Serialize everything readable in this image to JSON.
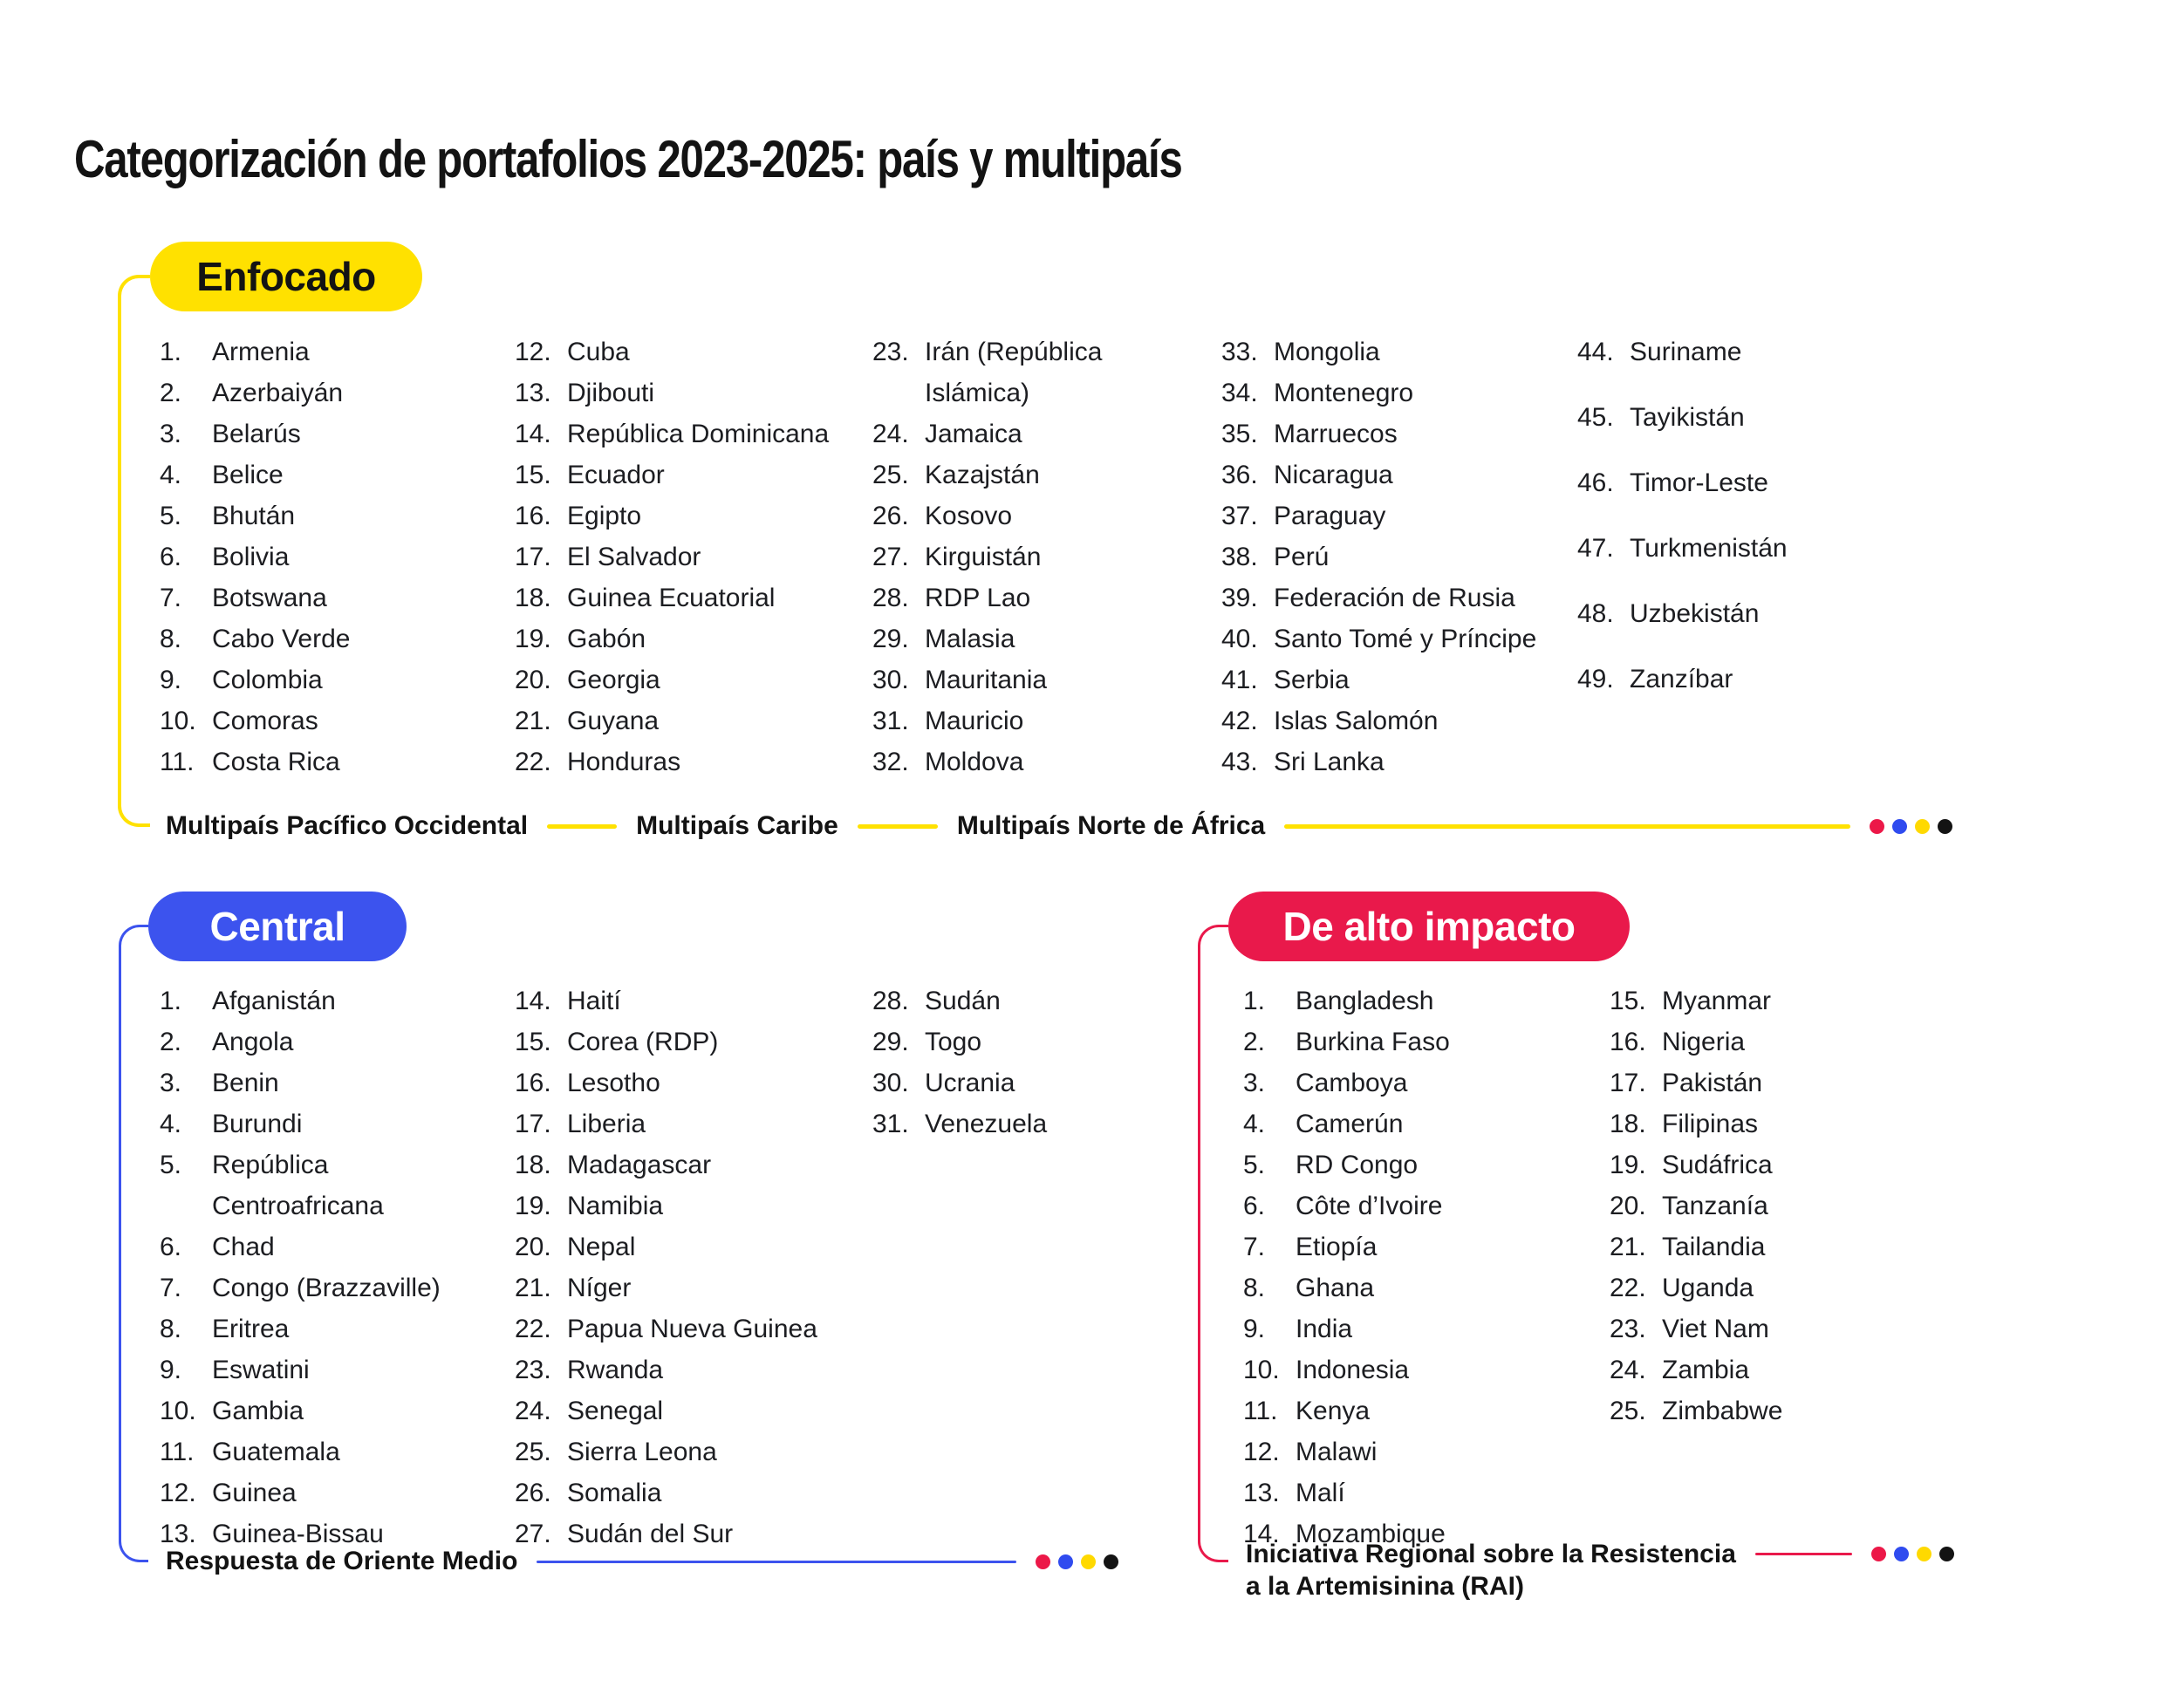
{
  "title": "Categorización de portafolios 2023-2025: país y multipaís",
  "dot_colors": [
    "#EC1848",
    "#2F4BEF",
    "#FFD900",
    "#131313"
  ],
  "sections": [
    {
      "label": "Enfocado",
      "color": "#FFE100",
      "text_color": "#131313",
      "footer_labels": [
        "Multipaís Pacífico Occidental",
        "Multipaís Caribe",
        "Multipaís Norte de África"
      ],
      "columns": [
        [
          {
            "num": "1.",
            "name": "Armenia"
          },
          {
            "num": "2.",
            "name": "Azerbaiyán"
          },
          {
            "num": "3.",
            "name": "Belarús"
          },
          {
            "num": "4.",
            "name": "Belice"
          },
          {
            "num": "5.",
            "name": "Bhután"
          },
          {
            "num": "6.",
            "name": "Bolivia"
          },
          {
            "num": "7.",
            "name": "Botswana"
          },
          {
            "num": "8.",
            "name": "Cabo Verde"
          },
          {
            "num": "9.",
            "name": "Colombia"
          },
          {
            "num": "10.",
            "name": "Comoras"
          },
          {
            "num": "11.",
            "name": "Costa Rica"
          }
        ],
        [
          {
            "num": "12.",
            "name": "Cuba"
          },
          {
            "num": "13.",
            "name": "Djibouti"
          },
          {
            "num": "14.",
            "name": "República Dominicana"
          },
          {
            "num": "15.",
            "name": "Ecuador"
          },
          {
            "num": "16.",
            "name": "Egipto"
          },
          {
            "num": "17.",
            "name": "El Salvador"
          },
          {
            "num": "18.",
            "name": "Guinea Ecuatorial"
          },
          {
            "num": "19.",
            "name": "Gabón"
          },
          {
            "num": "20.",
            "name": "Georgia"
          },
          {
            "num": "21.",
            "name": "Guyana"
          },
          {
            "num": "22.",
            "name": "Honduras"
          }
        ],
        [
          {
            "num": "23.",
            "name": "Irán (República\nIslámica)"
          },
          {
            "num": "24.",
            "name": "Jamaica"
          },
          {
            "num": "25.",
            "name": "Kazajstán"
          },
          {
            "num": "26.",
            "name": "Kosovo"
          },
          {
            "num": "27.",
            "name": "Kirguistán"
          },
          {
            "num": "28.",
            "name": "RDP Lao"
          },
          {
            "num": "29.",
            "name": "Malasia"
          },
          {
            "num": "30.",
            "name": "Mauritania"
          },
          {
            "num": "31.",
            "name": "Mauricio"
          },
          {
            "num": "32.",
            "name": "Moldova"
          }
        ],
        [
          {
            "num": "33.",
            "name": "Mongolia"
          },
          {
            "num": "34.",
            "name": "Montenegro"
          },
          {
            "num": "35.",
            "name": "Marruecos"
          },
          {
            "num": "36.",
            "name": "Nicaragua"
          },
          {
            "num": "37.",
            "name": "Paraguay"
          },
          {
            "num": "38.",
            "name": "Perú"
          },
          {
            "num": "39.",
            "name": "Federación de Rusia"
          },
          {
            "num": "40.",
            "name": "Santo Tomé y Príncipe"
          },
          {
            "num": "41.",
            "name": "Serbia"
          },
          {
            "num": "42.",
            "name": "Islas Salomón"
          },
          {
            "num": "43.",
            "name": "Sri Lanka"
          }
        ],
        [
          {
            "num": "44.",
            "name": "Suriname"
          },
          {
            "num": "45.",
            "name": "Tayikistán"
          },
          {
            "num": "46.",
            "name": "Timor-Leste"
          },
          {
            "num": "47.",
            "name": "Turkmenistán"
          },
          {
            "num": "48.",
            "name": "Uzbekistán"
          },
          {
            "num": "49.",
            "name": "Zanzíbar"
          }
        ]
      ]
    },
    {
      "label": "Central",
      "color": "#3C53EE",
      "text_color": "#FFFFFF",
      "footer_label": "Respuesta de Oriente Medio",
      "columns": [
        [
          {
            "num": "1.",
            "name": "Afganistán"
          },
          {
            "num": "2.",
            "name": "Angola"
          },
          {
            "num": "3.",
            "name": "Benin"
          },
          {
            "num": "4.",
            "name": "Burundi"
          },
          {
            "num": "5.",
            "name": "República\nCentroafricana"
          },
          {
            "num": "6.",
            "name": "Chad"
          },
          {
            "num": "7.",
            "name": "Congo (Brazzaville)"
          },
          {
            "num": "8.",
            "name": "Eritrea"
          },
          {
            "num": "9.",
            "name": "Eswatini"
          },
          {
            "num": "10.",
            "name": "Gambia"
          },
          {
            "num": "11.",
            "name": "Guatemala"
          },
          {
            "num": "12.",
            "name": "Guinea"
          },
          {
            "num": "13.",
            "name": "Guinea-Bissau"
          }
        ],
        [
          {
            "num": "14.",
            "name": "Haití"
          },
          {
            "num": "15.",
            "name": "Corea (RDP)"
          },
          {
            "num": "16.",
            "name": "Lesotho"
          },
          {
            "num": "17.",
            "name": "Liberia"
          },
          {
            "num": "18.",
            "name": "Madagascar"
          },
          {
            "num": "19.",
            "name": "Namibia"
          },
          {
            "num": "20.",
            "name": "Nepal"
          },
          {
            "num": "21.",
            "name": "Níger"
          },
          {
            "num": "22.",
            "name": "Papua Nueva Guinea"
          },
          {
            "num": "23.",
            "name": "Rwanda"
          },
          {
            "num": "24.",
            "name": "Senegal"
          },
          {
            "num": "25.",
            "name": "Sierra Leona"
          },
          {
            "num": "26.",
            "name": "Somalia"
          },
          {
            "num": "27.",
            "name": "Sudán del Sur"
          }
        ],
        [
          {
            "num": "28.",
            "name": "Sudán"
          },
          {
            "num": "29.",
            "name": "Togo"
          },
          {
            "num": "30.",
            "name": "Ucrania"
          },
          {
            "num": "31.",
            "name": "Venezuela"
          }
        ]
      ]
    },
    {
      "label": "De alto impacto",
      "color": "#E9194B",
      "text_color": "#FFFFFF",
      "footer_label": "Iniciativa Regional sobre la Resistencia\na la Artemisinina (RAI)",
      "columns": [
        [
          {
            "num": "1.",
            "name": "Bangladesh"
          },
          {
            "num": "2.",
            "name": "Burkina Faso"
          },
          {
            "num": "3.",
            "name": "Camboya"
          },
          {
            "num": "4.",
            "name": "Camerún"
          },
          {
            "num": "5.",
            "name": "RD Congo"
          },
          {
            "num": "6.",
            "name": "Côte d’Ivoire"
          },
          {
            "num": "7.",
            "name": "Etiopía"
          },
          {
            "num": "8.",
            "name": "Ghana"
          },
          {
            "num": "9.",
            "name": "India"
          },
          {
            "num": "10.",
            "name": "Indonesia"
          },
          {
            "num": "11.",
            "name": "Kenya"
          },
          {
            "num": "12.",
            "name": "Malawi"
          },
          {
            "num": "13.",
            "name": "Malí"
          },
          {
            "num": "14.",
            "name": "Mozambique"
          }
        ],
        [
          {
            "num": "15.",
            "name": "Myanmar"
          },
          {
            "num": "16.",
            "name": "Nigeria"
          },
          {
            "num": "17.",
            "name": "Pakistán"
          },
          {
            "num": "18.",
            "name": "Filipinas"
          },
          {
            "num": "19.",
            "name": "Sudáfrica"
          },
          {
            "num": "20.",
            "name": "Tanzanía"
          },
          {
            "num": "21.",
            "name": "Tailandia"
          },
          {
            "num": "22.",
            "name": "Uganda"
          },
          {
            "num": "23.",
            "name": "Viet Nam"
          },
          {
            "num": "24.",
            "name": "Zambia"
          },
          {
            "num": "25.",
            "name": "Zimbabwe"
          }
        ]
      ]
    }
  ]
}
